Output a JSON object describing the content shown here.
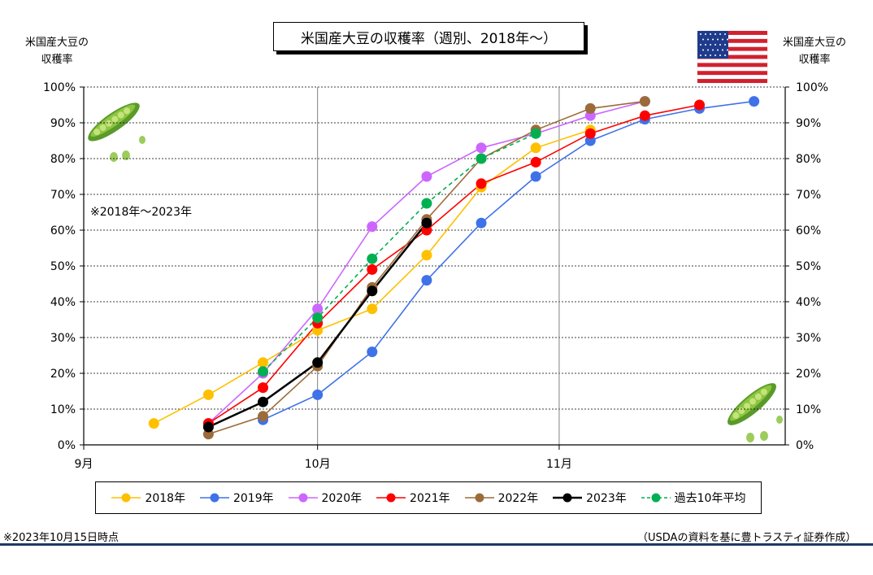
{
  "chart_data": {
    "type": "line",
    "title": "米国産大豆の収穫率（週別、2018年～）",
    "ylabel_left": "米国産大豆の\n収穫率",
    "ylabel_right": "米国産大豆の\n収穫率",
    "ylim": [
      0,
      100
    ],
    "y_ticks": [
      "0%",
      "10%",
      "20%",
      "30%",
      "40%",
      "50%",
      "60%",
      "70%",
      "80%",
      "90%",
      "100%"
    ],
    "x_range": [
      "2023-09-01",
      "2023-11-30"
    ],
    "x_ticks": [
      {
        "label": "9月",
        "date": "2023-09-01"
      },
      {
        "label": "10月",
        "date": "2023-10-01"
      },
      {
        "label": "11月",
        "date": "2023-11-01"
      }
    ],
    "grid": "horizontal dotted, vertical solid at month starts",
    "legend_position": "bottom",
    "annotation": "※2018年～2023年",
    "series": [
      {
        "name": "2018年",
        "color": "#ffc000",
        "dash": false,
        "points": [
          [
            "2023-09-10",
            6
          ],
          [
            "2023-09-17",
            14
          ],
          [
            "2023-09-24",
            23
          ],
          [
            "2023-10-01",
            32
          ],
          [
            "2023-10-08",
            38
          ],
          [
            "2023-10-15",
            53
          ],
          [
            "2023-10-22",
            72
          ],
          [
            "2023-10-29",
            83
          ],
          [
            "2023-11-05",
            88
          ]
        ]
      },
      {
        "name": "2019年",
        "color": "#3f72e8",
        "dash": false,
        "points": [
          [
            "2023-09-24",
            7
          ],
          [
            "2023-10-01",
            14
          ],
          [
            "2023-10-08",
            26
          ],
          [
            "2023-10-15",
            46
          ],
          [
            "2023-10-22",
            62
          ],
          [
            "2023-10-29",
            75
          ],
          [
            "2023-11-05",
            85
          ],
          [
            "2023-11-12",
            91
          ],
          [
            "2023-11-19",
            94
          ],
          [
            "2023-11-26",
            96
          ]
        ]
      },
      {
        "name": "2020年",
        "color": "#cc66ff",
        "dash": false,
        "points": [
          [
            "2023-09-17",
            6
          ],
          [
            "2023-09-24",
            20
          ],
          [
            "2023-10-01",
            38
          ],
          [
            "2023-10-08",
            61
          ],
          [
            "2023-10-15",
            75
          ],
          [
            "2023-10-22",
            83
          ],
          [
            "2023-10-29",
            87
          ],
          [
            "2023-11-05",
            92
          ],
          [
            "2023-11-12",
            96
          ]
        ]
      },
      {
        "name": "2021年",
        "color": "#ff0000",
        "dash": false,
        "points": [
          [
            "2023-09-17",
            6
          ],
          [
            "2023-09-24",
            16
          ],
          [
            "2023-10-01",
            34
          ],
          [
            "2023-10-08",
            49
          ],
          [
            "2023-10-15",
            60
          ],
          [
            "2023-10-22",
            73
          ],
          [
            "2023-10-29",
            79
          ],
          [
            "2023-11-05",
            87
          ],
          [
            "2023-11-12",
            92
          ],
          [
            "2023-11-19",
            95
          ]
        ]
      },
      {
        "name": "2022年",
        "color": "#9c6b3a",
        "dash": false,
        "points": [
          [
            "2023-09-17",
            3
          ],
          [
            "2023-09-24",
            8
          ],
          [
            "2023-10-01",
            22
          ],
          [
            "2023-10-08",
            44
          ],
          [
            "2023-10-15",
            63
          ],
          [
            "2023-10-22",
            80
          ],
          [
            "2023-10-29",
            88
          ],
          [
            "2023-11-05",
            94
          ],
          [
            "2023-11-12",
            96
          ]
        ]
      },
      {
        "name": "2023年",
        "color": "#000000",
        "dash": false,
        "thick": true,
        "points": [
          [
            "2023-09-17",
            5
          ],
          [
            "2023-09-24",
            12
          ],
          [
            "2023-10-01",
            23
          ],
          [
            "2023-10-08",
            43
          ],
          [
            "2023-10-15",
            62
          ]
        ]
      },
      {
        "name": "過去10年平均",
        "color": "#00b050",
        "dash": true,
        "points": [
          [
            "2023-09-24",
            20.5
          ],
          [
            "2023-10-01",
            35.5
          ],
          [
            "2023-10-08",
            52
          ],
          [
            "2023-10-15",
            67.5
          ],
          [
            "2023-10-22",
            80
          ],
          [
            "2023-10-29",
            87
          ]
        ]
      }
    ]
  },
  "footnote_left": "※2023年10月15日時点",
  "footnote_right": "（USDAの資料を基に豊トラスティ証券作成）"
}
